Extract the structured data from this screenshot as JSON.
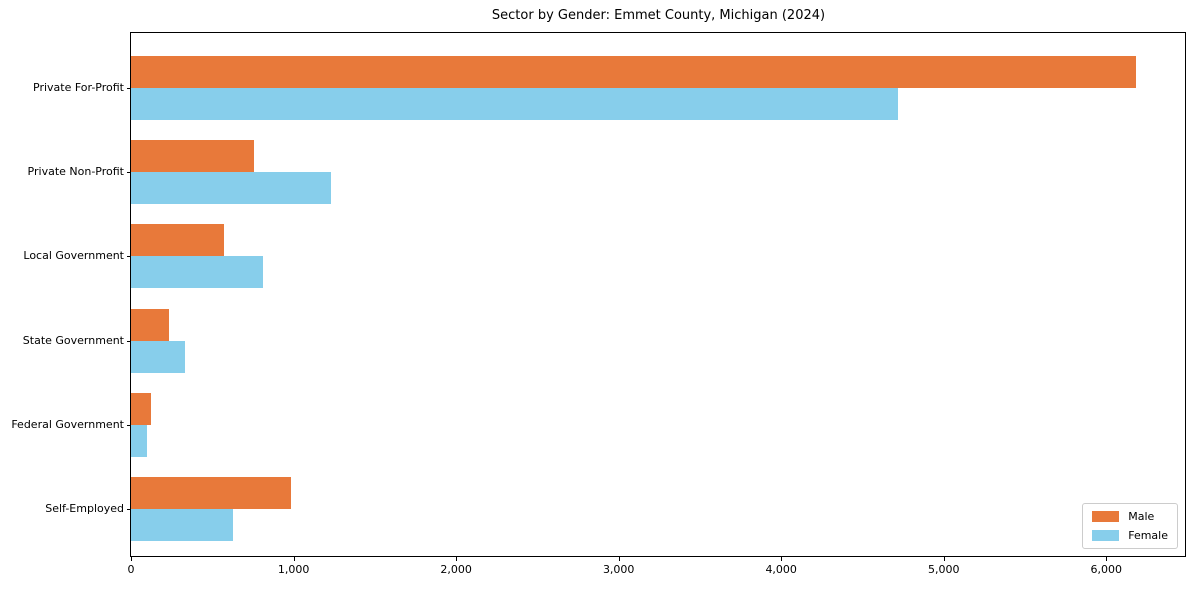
{
  "chart_data": {
    "type": "bar",
    "orientation": "horizontal",
    "title": "Sector by Gender: Emmet County, Michigan (2024)",
    "categories": [
      "Private For-Profit",
      "Private Non-Profit",
      "Local Government",
      "State Government",
      "Federal Government",
      "Self-Employed"
    ],
    "series": [
      {
        "name": "Male",
        "color": "#e8793a",
        "values": [
          6180,
          755,
          570,
          235,
          120,
          985
        ]
      },
      {
        "name": "Female",
        "color": "#87ceeb",
        "values": [
          4720,
          1230,
          810,
          330,
          100,
          630
        ]
      }
    ],
    "xlabel": "",
    "ylabel": "",
    "xlim": [
      0,
      6490
    ],
    "x_tick_values": [
      0,
      1000,
      2000,
      3000,
      4000,
      5000,
      6000
    ],
    "x_tick_labels": [
      "0",
      "1,000",
      "2,000",
      "3,000",
      "4,000",
      "5,000",
      "6,000"
    ],
    "grid": false,
    "legend_position": "lower right"
  },
  "colors": {
    "axis": "#000000",
    "legend_border": "#cccccc",
    "background": "#ffffff"
  }
}
